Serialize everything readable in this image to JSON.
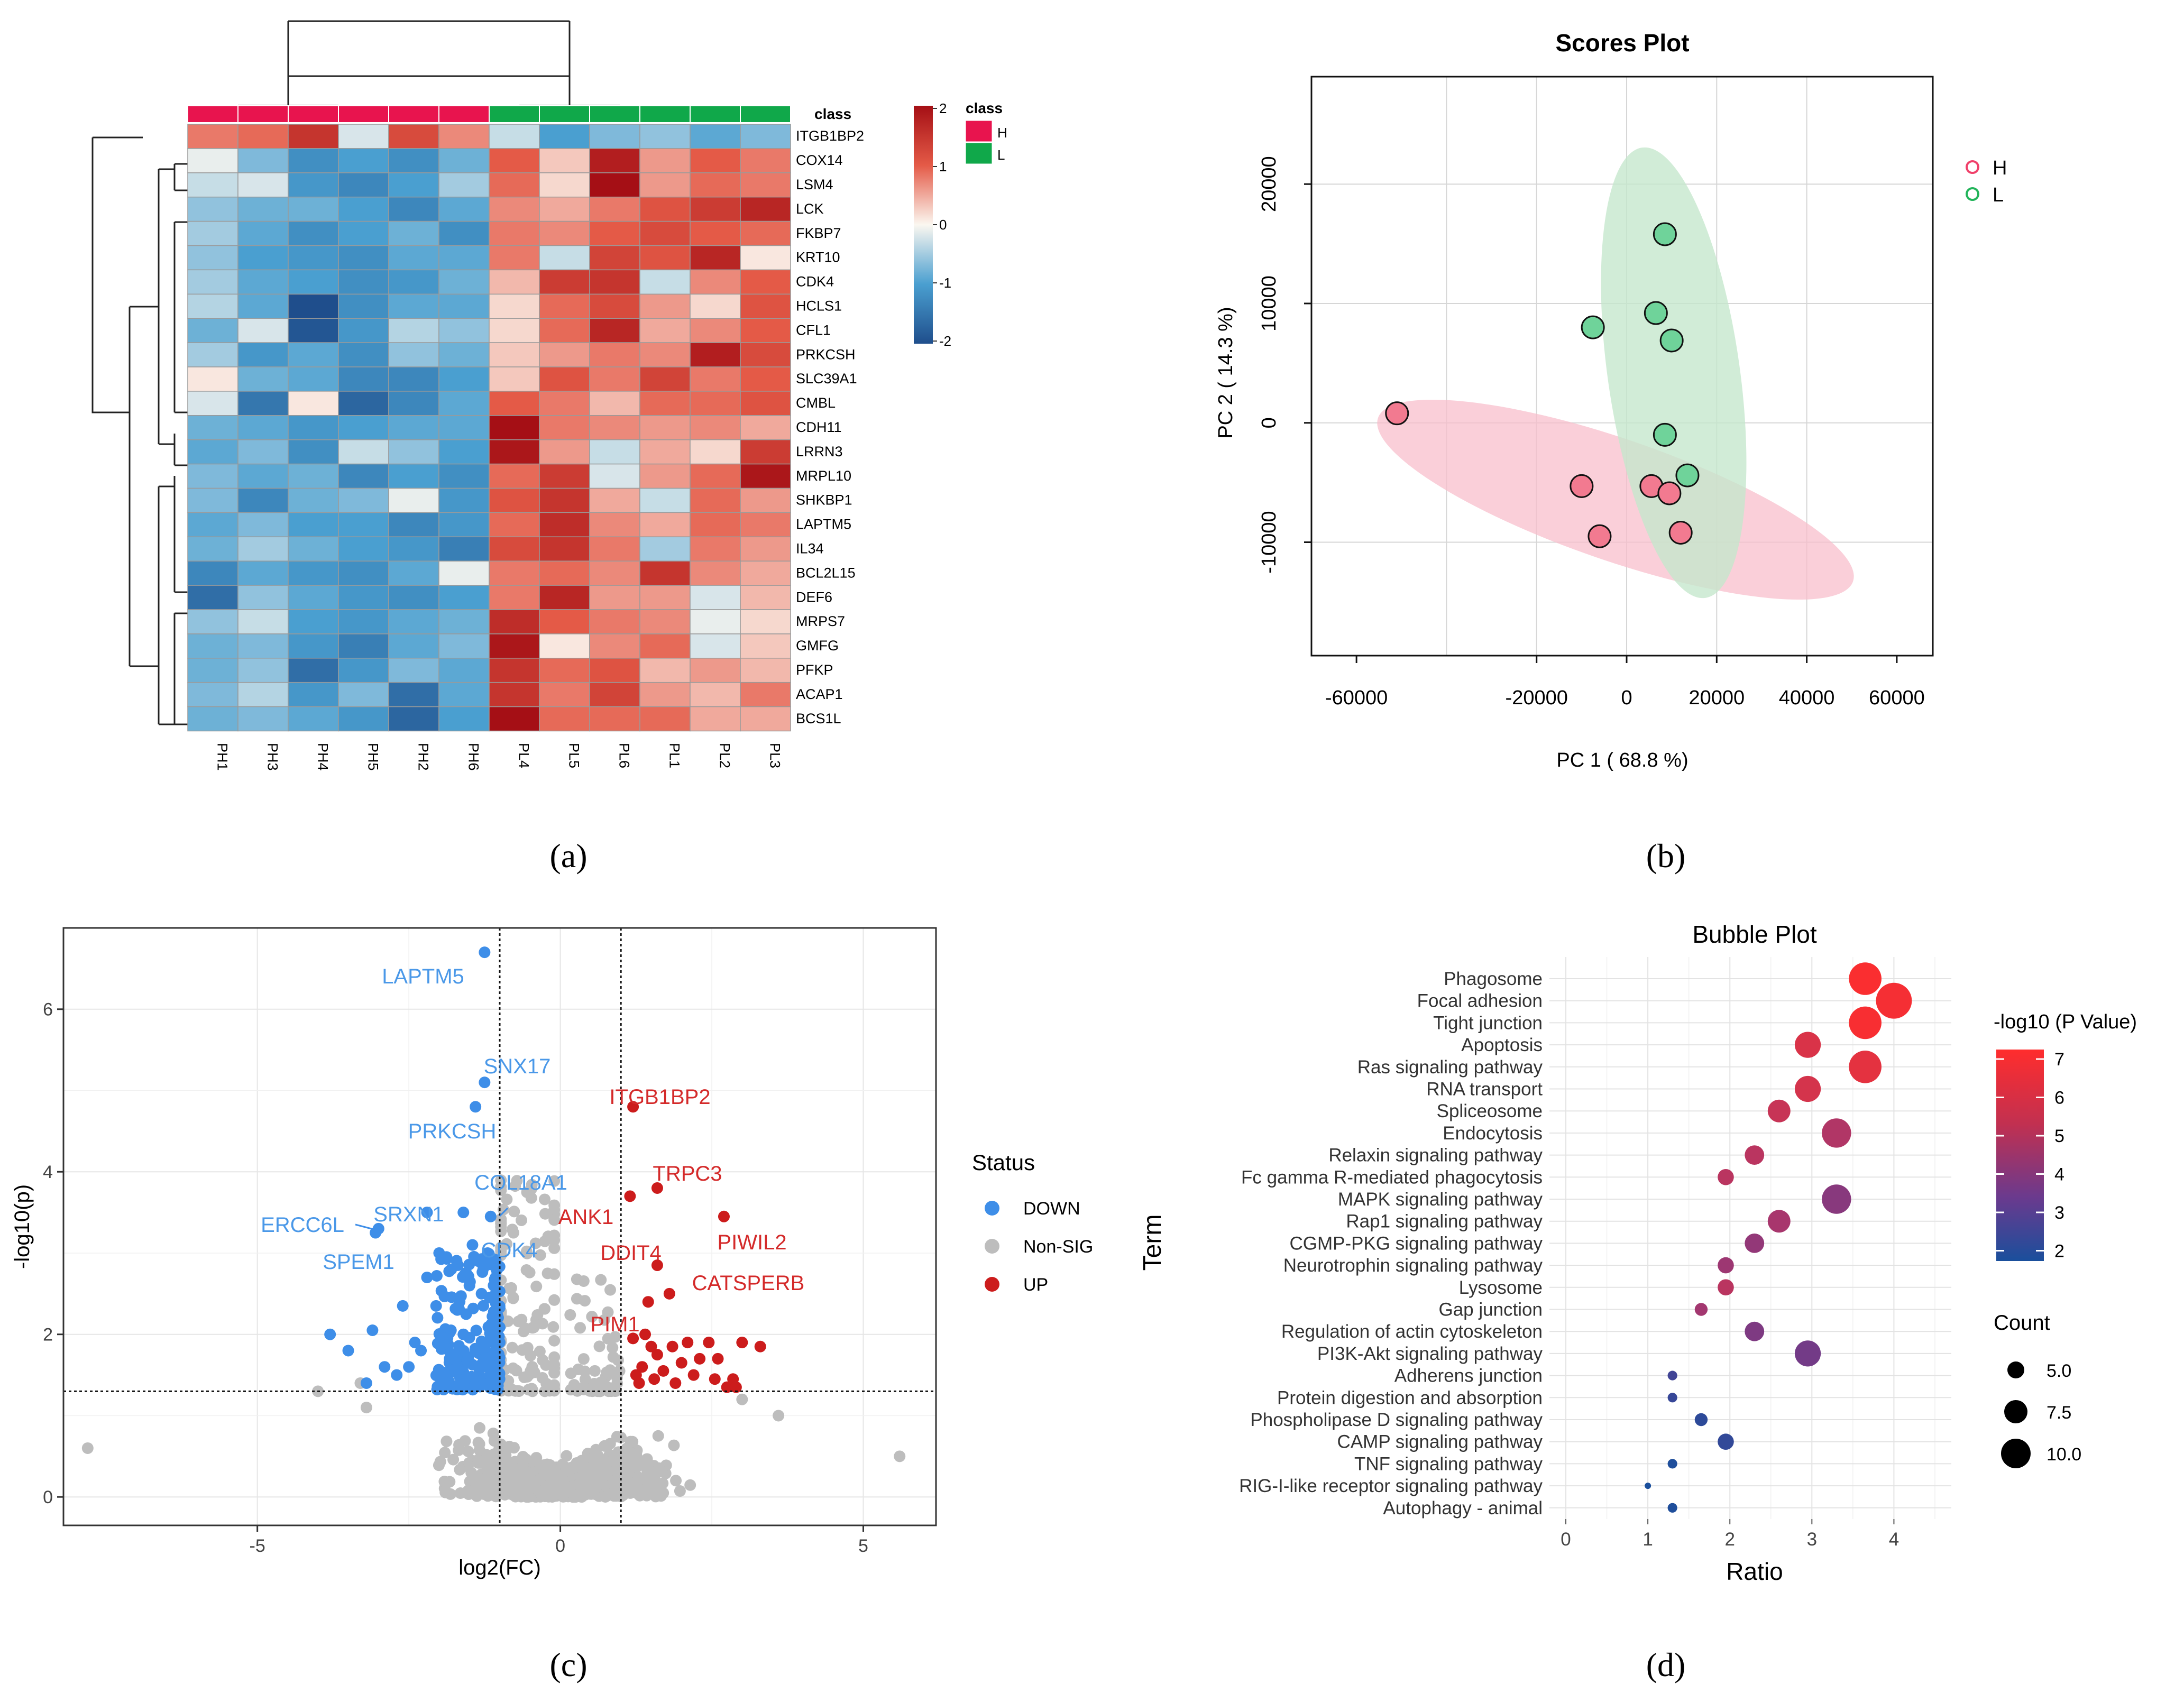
{
  "panel_labels": [
    "(a)",
    "(b)",
    "(c)",
    "(d)"
  ],
  "chart_data": [
    {
      "type": "heatmap",
      "title": "",
      "columns": [
        "PH1",
        "PH3",
        "PH4",
        "PH5",
        "PH2",
        "PH6",
        "PL4",
        "PL5",
        "PL6",
        "PL1",
        "PL2",
        "PL3"
      ],
      "column_class": [
        "H",
        "H",
        "H",
        "H",
        "H",
        "H",
        "L",
        "L",
        "L",
        "L",
        "L",
        "L"
      ],
      "rows": [
        "ITGB1BP2",
        "COX14",
        "LSM4",
        "LCK",
        "FKBP7",
        "KRT10",
        "CDK4",
        "HCLS1",
        "CFL1",
        "PRKCSH",
        "SLC39A1",
        "CMBL",
        "CDH11",
        "LRRN3",
        "MRPL10",
        "SHKBP1",
        "LAPTM5",
        "IL34",
        "BCL2L15",
        "DEF6",
        "MRPS7",
        "GMFG",
        "PFKP",
        "ACAP1",
        "BCS1L"
      ],
      "values": [
        [
          0.8,
          0.9,
          1.5,
          -0.2,
          1.2,
          0.7,
          -0.3,
          -1.0,
          -0.7,
          -0.6,
          -0.9,
          -0.7
        ],
        [
          -0.1,
          -0.7,
          -1.2,
          -1.0,
          -1.2,
          -0.8,
          1.0,
          0.3,
          1.8,
          0.6,
          1.0,
          0.8
        ],
        [
          -0.3,
          -0.2,
          -1.1,
          -1.3,
          -1.0,
          -0.5,
          0.9,
          0.2,
          2.0,
          0.6,
          0.9,
          0.8
        ],
        [
          -0.6,
          -0.8,
          -0.8,
          -1.0,
          -1.3,
          -0.9,
          0.7,
          0.5,
          0.8,
          1.1,
          1.4,
          1.7
        ],
        [
          -0.5,
          -0.9,
          -1.2,
          -1.0,
          -0.8,
          -1.2,
          0.8,
          0.7,
          1.0,
          1.2,
          1.0,
          0.9
        ],
        [
          -0.6,
          -1.0,
          -1.1,
          -1.2,
          -0.9,
          -0.9,
          0.8,
          -0.3,
          1.3,
          1.1,
          1.7,
          0.1
        ],
        [
          -0.5,
          -0.9,
          -1.0,
          -1.2,
          -1.1,
          -0.8,
          0.4,
          1.4,
          1.5,
          -0.3,
          0.7,
          1.0
        ],
        [
          -0.4,
          -0.9,
          -2.0,
          -1.2,
          -0.9,
          -0.9,
          0.2,
          0.9,
          1.2,
          0.6,
          0.2,
          1.1
        ],
        [
          -0.8,
          -0.2,
          -1.9,
          -1.1,
          -0.4,
          -0.6,
          0.2,
          0.9,
          1.7,
          0.5,
          0.7,
          1.0
        ],
        [
          -0.5,
          -1.1,
          -0.9,
          -1.2,
          -0.6,
          -0.8,
          0.3,
          0.6,
          0.8,
          0.7,
          1.8,
          1.2
        ],
        [
          0.1,
          -0.8,
          -0.9,
          -1.3,
          -1.3,
          -1.0,
          0.3,
          1.1,
          0.8,
          1.3,
          0.8,
          1.0
        ],
        [
          -0.2,
          -1.5,
          0.1,
          -1.7,
          -1.3,
          -0.9,
          1.0,
          0.8,
          0.4,
          0.9,
          0.9,
          1.1
        ],
        [
          -0.8,
          -0.9,
          -1.1,
          -1.0,
          -0.9,
          -0.9,
          2.0,
          0.8,
          0.7,
          0.6,
          0.7,
          0.5
        ],
        [
          -0.9,
          -0.7,
          -1.2,
          -0.3,
          -0.6,
          -1.0,
          1.9,
          0.6,
          -0.3,
          0.5,
          0.2,
          1.4
        ],
        [
          -0.7,
          -0.9,
          -0.8,
          -1.3,
          -1.0,
          -1.2,
          0.9,
          1.4,
          -0.2,
          0.6,
          0.9,
          1.9
        ],
        [
          -0.7,
          -1.3,
          -0.8,
          -0.7,
          -0.1,
          -1.1,
          1.1,
          1.5,
          0.5,
          -0.3,
          0.9,
          0.6
        ],
        [
          -0.9,
          -0.7,
          -1.0,
          -1.0,
          -1.3,
          -1.1,
          0.9,
          1.6,
          0.7,
          0.5,
          0.9,
          0.8
        ],
        [
          -0.8,
          -0.5,
          -0.8,
          -1.0,
          -1.1,
          -1.4,
          1.2,
          1.5,
          0.8,
          -0.5,
          0.8,
          0.6
        ],
        [
          -1.3,
          -0.9,
          -1.1,
          -1.2,
          -0.9,
          -0.1,
          0.8,
          0.9,
          0.7,
          1.5,
          0.7,
          0.5
        ],
        [
          -1.6,
          -0.6,
          -0.9,
          -1.1,
          -1.2,
          -1.0,
          0.8,
          1.7,
          0.6,
          0.6,
          -0.2,
          0.4
        ],
        [
          -0.6,
          -0.3,
          -1.0,
          -1.1,
          -0.9,
          -0.8,
          1.6,
          1.0,
          0.8,
          0.7,
          -0.1,
          0.2
        ],
        [
          -0.8,
          -0.7,
          -1.1,
          -1.4,
          -0.9,
          -0.7,
          1.9,
          0.1,
          0.7,
          0.9,
          -0.2,
          0.3
        ],
        [
          -0.8,
          -0.6,
          -1.6,
          -1.1,
          -0.7,
          -0.9,
          1.5,
          0.9,
          1.1,
          0.4,
          0.6,
          0.4
        ],
        [
          -0.7,
          -0.4,
          -1.1,
          -0.7,
          -1.6,
          -0.9,
          1.5,
          0.8,
          1.3,
          0.6,
          0.4,
          0.8
        ],
        [
          -0.8,
          -0.7,
          -0.9,
          -1.1,
          -1.7,
          -1.0,
          2.0,
          0.9,
          0.9,
          0.9,
          0.5,
          0.5
        ]
      ],
      "color_scale": {
        "min": -2,
        "max": 2,
        "ticks": [
          "2",
          "1",
          "0",
          "-1",
          "-2"
        ],
        "low": "#1f5fa0",
        "mid": "#fbf7f0",
        "high": "#a50f15"
      },
      "class_legend": {
        "title": "class",
        "items": [
          {
            "label": "H",
            "color": "#e8144e"
          },
          {
            "label": "L",
            "color": "#10a84a"
          }
        ]
      },
      "class_row_label": "class",
      "dendrogram_col_split": 6
    },
    {
      "type": "scatter",
      "title": "Scores Plot",
      "xlabel": "PC 1 ( 68.8 %)",
      "ylabel": "PC 2 ( 14.3 %)",
      "xlim": [
        -70000,
        68000
      ],
      "ylim": [
        -19500,
        29000
      ],
      "xticks": [
        -60000,
        -20000,
        0,
        20000,
        40000,
        60000
      ],
      "xtick_labels": [
        "-60000",
        "-20000",
        "0",
        "20000",
        "40000",
        "60000"
      ],
      "yticks": [
        -10000,
        0,
        10000,
        20000
      ],
      "ytick_labels": [
        "-10000",
        "0",
        "10000",
        "20000"
      ],
      "series": [
        {
          "name": "H",
          "color": "#f27a90",
          "ellipse_color": "#f9c1cc",
          "points": [
            [
              -51000,
              800
            ],
            [
              -10000,
              -5300
            ],
            [
              -6000,
              -9500
            ],
            [
              5500,
              -5300
            ],
            [
              9500,
              -5900
            ],
            [
              12000,
              -9200
            ]
          ]
        },
        {
          "name": "L",
          "color": "#6fd39a",
          "ellipse_color": "#c9ebd1",
          "points": [
            [
              8500,
              15800
            ],
            [
              -7500,
              8000
            ],
            [
              6500,
              9200
            ],
            [
              10000,
              6900
            ],
            [
              8500,
              -1000
            ],
            [
              13500,
              -4400
            ]
          ]
        }
      ],
      "legend": [
        "H",
        "L"
      ]
    },
    {
      "type": "scatter",
      "title": "",
      "xlabel": "log2(FC)",
      "ylabel": "-log10(p)",
      "xlim": [
        -8.2,
        6.2
      ],
      "ylim": [
        -0.35,
        7.0
      ],
      "xticks": [
        -5,
        0,
        5
      ],
      "xtick_labels": [
        "-5",
        "0",
        "5"
      ],
      "yticks": [
        0,
        2,
        4,
        6
      ],
      "ytick_labels": [
        "0",
        "2",
        "4",
        "6"
      ],
      "thresholds": {
        "fc": [
          -1,
          1
        ],
        "p": 1.3
      },
      "legend_title": "Status",
      "legend": [
        {
          "label": "DOWN",
          "color": "#3e8ee8"
        },
        {
          "label": "Non-SIG",
          "color": "#bdbdbd"
        },
        {
          "label": "UP",
          "color": "#cc1c1c"
        }
      ],
      "labeled_points": [
        {
          "label": "LAPTM5",
          "x": -1.3,
          "y": 6.7,
          "status": "DOWN"
        },
        {
          "label": "SNX17",
          "x": -1.3,
          "y": 5.1,
          "status": "DOWN"
        },
        {
          "label": "PRKCSH",
          "x": -1.4,
          "y": 4.8,
          "status": "DOWN"
        },
        {
          "label": "COL18A1",
          "x": -1.1,
          "y": 3.45,
          "status": "DOWN"
        },
        {
          "label": "SRXN1",
          "x": -2.2,
          "y": 3.5,
          "status": "DOWN"
        },
        {
          "label": "ERCC6L",
          "x": -3.0,
          "y": 3.25,
          "status": "DOWN"
        },
        {
          "label": "SPEM1",
          "x": -3.0,
          "y": 3.3,
          "status": "DOWN"
        },
        {
          "label": "CDK4",
          "x": -1.2,
          "y": 3.0,
          "status": "DOWN"
        },
        {
          "label": "ITGB1BP2",
          "x": 1.2,
          "y": 4.8,
          "status": "UP"
        },
        {
          "label": "TRPC3",
          "x": 1.6,
          "y": 3.8,
          "status": "UP"
        },
        {
          "label": "ANK1",
          "x": 1.15,
          "y": 3.7,
          "status": "UP"
        },
        {
          "label": "PIWIL2",
          "x": 2.7,
          "y": 3.45,
          "status": "UP"
        },
        {
          "label": "DDIT4",
          "x": 1.6,
          "y": 2.85,
          "status": "UP"
        },
        {
          "label": "CATSPERB",
          "x": 1.8,
          "y": 2.5,
          "status": "UP"
        },
        {
          "label": "PIM1",
          "x": 1.2,
          "y": 1.95,
          "status": "UP"
        }
      ]
    },
    {
      "type": "scatter",
      "title": "Bubble Plot",
      "xlabel": "Ratio",
      "ylabel": "Term",
      "xlim": [
        -0.2,
        4.7
      ],
      "xticks": [
        0,
        1,
        2,
        3,
        4
      ],
      "xtick_labels": [
        "0",
        "1",
        "2",
        "3",
        "4"
      ],
      "terms": [
        "Phagosome",
        "Focal adhesion",
        "Tight junction",
        "Apoptosis",
        "Ras signaling pathway",
        "RNA transport",
        "Spliceosome",
        "Endocytosis",
        "Relaxin signaling pathway",
        "Fc gamma R-mediated phagocytosis",
        "MAPK signaling pathway",
        "Rap1 signaling pathway",
        "CGMP-PKG signaling pathway",
        "Neurotrophin signaling pathway",
        "Lysosome",
        "Gap junction",
        "Regulation of actin cytoskeleton",
        "PI3K-Akt signaling pathway",
        "Adherens junction",
        "Protein digestion and absorption",
        "Phospholipase D signaling pathway",
        "CAMP signaling pathway",
        "TNF signaling pathway",
        "RIG-I-like receptor signaling pathway",
        "Autophagy - animal"
      ],
      "ratio": [
        3.65,
        4.0,
        3.65,
        2.95,
        3.65,
        2.95,
        2.6,
        3.3,
        2.3,
        1.95,
        3.3,
        2.6,
        2.3,
        1.95,
        1.95,
        1.65,
        2.3,
        2.95,
        1.3,
        1.3,
        1.65,
        1.95,
        1.3,
        1.0,
        1.3
      ],
      "count": [
        11,
        12,
        11,
        9,
        11,
        9,
        8,
        10,
        7,
        6,
        10,
        8,
        7,
        6,
        6,
        5,
        7,
        9,
        4,
        4,
        5,
        6,
        4,
        3,
        4
      ],
      "neg_log10_p": [
        7.0,
        6.8,
        6.9,
        5.7,
        6.1,
        5.6,
        5.3,
        4.8,
        5.0,
        5.0,
        4.0,
        4.6,
        4.2,
        4.4,
        5.0,
        4.5,
        3.8,
        3.6,
        2.6,
        2.4,
        2.2,
        2.3,
        1.9,
        1.6,
        1.9
      ],
      "color_legend_title": "-log10 (P Value)",
      "color_scale": {
        "min": 1.8,
        "max": 7.2,
        "ticks": [
          "7",
          "6",
          "5",
          "4",
          "3",
          "2"
        ],
        "low": "#1a4f9c",
        "mid": "#7a3a8e",
        "high": "#ff2d2d"
      },
      "size_legend_title": "Count",
      "size_legend": [
        "5.0",
        "7.5",
        "10.0"
      ]
    }
  ]
}
